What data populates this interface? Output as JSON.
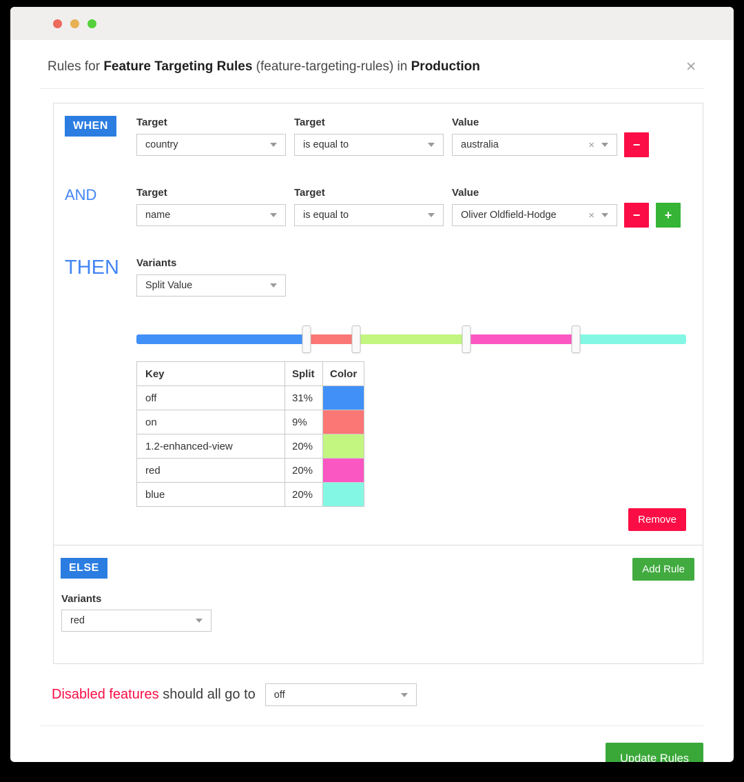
{
  "colors": {
    "accent_blue": "#2b7de1",
    "keyword_blue": "#4285f4",
    "danger": "#fb0d45",
    "success": "#35b435",
    "add_rule_green": "#41ab3f",
    "update_green": "#3aa839"
  },
  "window": {
    "traffic_lights": [
      "#ed6a5e",
      "#e7b153",
      "#55d03a"
    ]
  },
  "header": {
    "title_prefix": "Rules for ",
    "flag_name": "Feature Targeting Rules",
    "flag_key": " (feature-targeting-rules) in ",
    "environment": "Production",
    "close_glyph": "✕"
  },
  "rule": {
    "keywords": {
      "when": "WHEN",
      "and": "AND",
      "then": "THEN",
      "else": "ELSE"
    },
    "labels": {
      "target": "Target",
      "operator": "Target",
      "value": "Value"
    },
    "conditions": [
      {
        "target": "country",
        "operator": "is equal to",
        "value": "australia"
      },
      {
        "target": "name",
        "operator": "is equal to",
        "value": "Oliver Oldfield-Hodge"
      }
    ],
    "clear_glyph": "×",
    "minus_glyph": "−",
    "plus_glyph": "+",
    "variants_label": "Variants",
    "variants_value": "Split Value",
    "split_table": {
      "headers": [
        "Key",
        "Split",
        "Color"
      ],
      "rows": [
        {
          "key": "off",
          "split": "31%",
          "color": "#4190f7"
        },
        {
          "key": "on",
          "split": "9%",
          "color": "#fa7775"
        },
        {
          "key": "1.2-enhanced-view",
          "split": "20%",
          "color": "#c3f581"
        },
        {
          "key": "red",
          "split": "20%",
          "color": "#fa57c3"
        },
        {
          "key": "blue",
          "split": "20%",
          "color": "#84f7e4"
        }
      ]
    },
    "remove_label": "Remove",
    "add_rule_label": "Add Rule",
    "else_variants_label": "Variants",
    "else_variant_value": "red"
  },
  "footer": {
    "disabled_text": "Disabled features",
    "rest_text": " should all go to",
    "fallback_value": "off",
    "update_label": "Update Rules"
  }
}
